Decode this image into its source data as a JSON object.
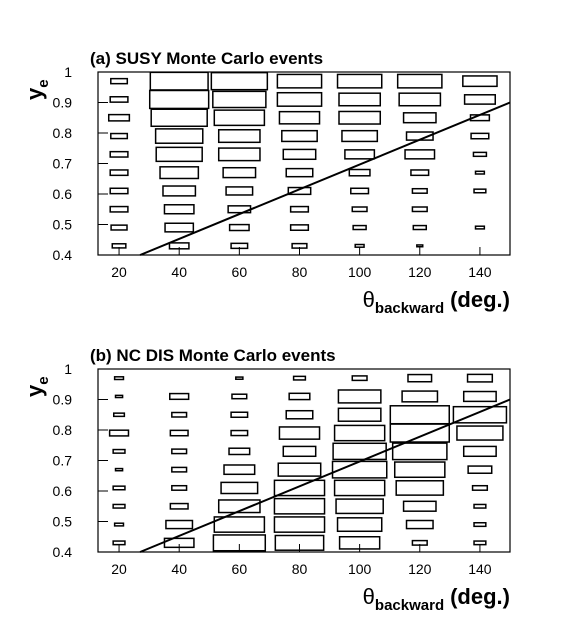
{
  "chart_data": [
    {
      "type": "box2d",
      "title": "(a) SUSY Monte Carlo events",
      "ylabel": {
        "symbol": "y",
        "subscript": "e"
      },
      "xlabel": {
        "symbol": "θ",
        "subscript": "backward",
        "unit": "(deg.)"
      },
      "xbins": [
        10,
        30,
        50,
        70,
        90,
        110,
        130,
        150
      ],
      "ybins": [
        0.4,
        0.46,
        0.52,
        0.58,
        0.64,
        0.7,
        0.76,
        0.82,
        0.88,
        0.94,
        1.0
      ],
      "values": [
        [
          0.23,
          0.27,
          0.3,
          0.3,
          0.3,
          0.3,
          0.28,
          0.35,
          0.3,
          0.28
        ],
        [
          0.33,
          0.48,
          0.5,
          0.55,
          0.65,
          0.78,
          0.8,
          0.95,
          1.0,
          0.98
        ],
        [
          0.28,
          0.33,
          0.38,
          0.45,
          0.55,
          0.7,
          0.7,
          0.85,
          0.9,
          0.95
        ],
        [
          0.25,
          0.3,
          0.3,
          0.38,
          0.45,
          0.55,
          0.6,
          0.68,
          0.75,
          0.75
        ],
        [
          0.15,
          0.22,
          0.25,
          0.3,
          0.35,
          0.5,
          0.6,
          0.7,
          0.7,
          0.75
        ],
        [
          0.1,
          0.22,
          0.25,
          0.25,
          0.3,
          0.5,
          0.45,
          0.55,
          0.7,
          0.75
        ],
        [
          0,
          0.15,
          0,
          0.2,
          0.15,
          0.22,
          0.3,
          0.32,
          0.52,
          0.58
        ]
      ],
      "line": {
        "x": [
          27,
          150
        ],
        "y": [
          0.4,
          0.9
        ]
      },
      "xlim": [
        13,
        150
      ],
      "ylim": [
        0.4,
        1
      ],
      "xticks": [
        20,
        40,
        60,
        80,
        100,
        120,
        140
      ],
      "yticks": [
        0.4,
        0.5,
        0.6,
        0.7,
        0.8,
        0.9,
        1
      ]
    },
    {
      "type": "box2d",
      "title": "(b) NC DIS Monte Carlo events",
      "ylabel": {
        "symbol": "y",
        "subscript": "e"
      },
      "xlabel": {
        "symbol": "θ",
        "subscript": "backward",
        "unit": "(deg.)"
      },
      "xbins": [
        10,
        30,
        50,
        70,
        90,
        110,
        130,
        150
      ],
      "ybins": [
        0.4,
        0.46,
        0.52,
        0.58,
        0.64,
        0.7,
        0.76,
        0.82,
        0.88,
        0.94,
        1.0
      ],
      "values": [
        [
          0.2,
          0.15,
          0.2,
          0.2,
          0.12,
          0.2,
          0.32,
          0.18,
          0.12,
          0.15
        ],
        [
          0.5,
          0.45,
          0.3,
          0.25,
          0.25,
          0.25,
          0.3,
          0.25,
          0.32,
          0
        ],
        [
          0.88,
          0.85,
          0.7,
          0.62,
          0.52,
          0.35,
          0.28,
          0.28,
          0.25,
          0.12
        ],
        [
          0.82,
          0.85,
          0.85,
          0.85,
          0.72,
          0.55,
          0.68,
          0.45,
          0.35,
          0.2
        ],
        [
          0.68,
          0.75,
          0.8,
          0.85,
          0.92,
          0.9,
          0.85,
          0.72,
          0.72,
          0.25
        ],
        [
          0.25,
          0.45,
          0.55,
          0.8,
          0.85,
          0.92,
          1.0,
          1.0,
          0.6,
          0.4
        ],
        [
          0.2,
          0.2,
          0.2,
          0.25,
          0.4,
          0.55,
          0.78,
          0.9,
          0.55,
          0.42
        ]
      ],
      "line": {
        "x": [
          27,
          150
        ],
        "y": [
          0.4,
          0.9
        ]
      },
      "xlim": [
        13,
        150
      ],
      "ylim": [
        0.4,
        1
      ],
      "xticks": [
        20,
        40,
        60,
        80,
        100,
        120,
        140
      ],
      "yticks": [
        0.4,
        0.5,
        0.6,
        0.7,
        0.8,
        0.9,
        1
      ]
    }
  ]
}
